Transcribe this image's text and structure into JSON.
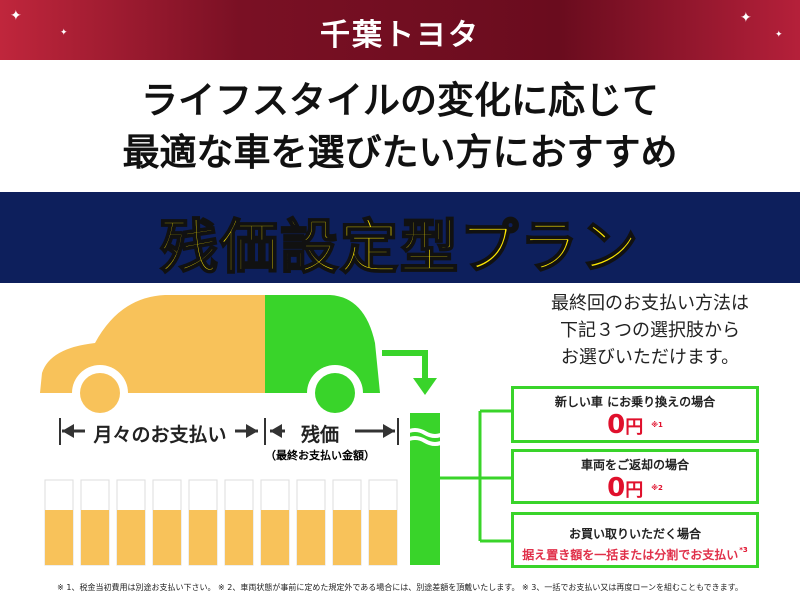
{
  "header": {
    "logo": "千葉トヨタ",
    "brand_color": "#7a1024"
  },
  "headline": {
    "line1": "ライフスタイルの変化に応じて",
    "line2": "最適な車を選びたい方におすすめ"
  },
  "banner": {
    "title": "残価設定型プラン",
    "bg_color": "#0d1f5c",
    "text_color": "#ffe800"
  },
  "diagram": {
    "monthly_label": "月々のお支払い",
    "residual_label": "残価",
    "residual_sub": "（最終お支払い金額）",
    "monthly_color": "#f8c25a",
    "residual_color": "#39d42a"
  },
  "options": {
    "intro": [
      "最終回のお支払い方法は",
      "下記３つの選択肢から",
      "お選びいただけます。"
    ],
    "items": [
      {
        "title": "新しい車 にお乗り換えの場合",
        "amount": "0",
        "unit": "円",
        "note": "※1"
      },
      {
        "title": "車両をご返却の場合",
        "amount": "0",
        "unit": "円",
        "note": "※2"
      },
      {
        "title": "お買い取りいただく場合",
        "detail": "据え置き額を一括または分割でお支払い",
        "note": "*3"
      }
    ]
  },
  "footnote": "※ 1、税金当初費用は別途お支払い下さい。 ※ 2、車両状態が事前に定めた規定外である場合には、別途差額を頂戴いたします。 ※ 3、一括でお支払い又は再度ローンを組むこともできます。"
}
